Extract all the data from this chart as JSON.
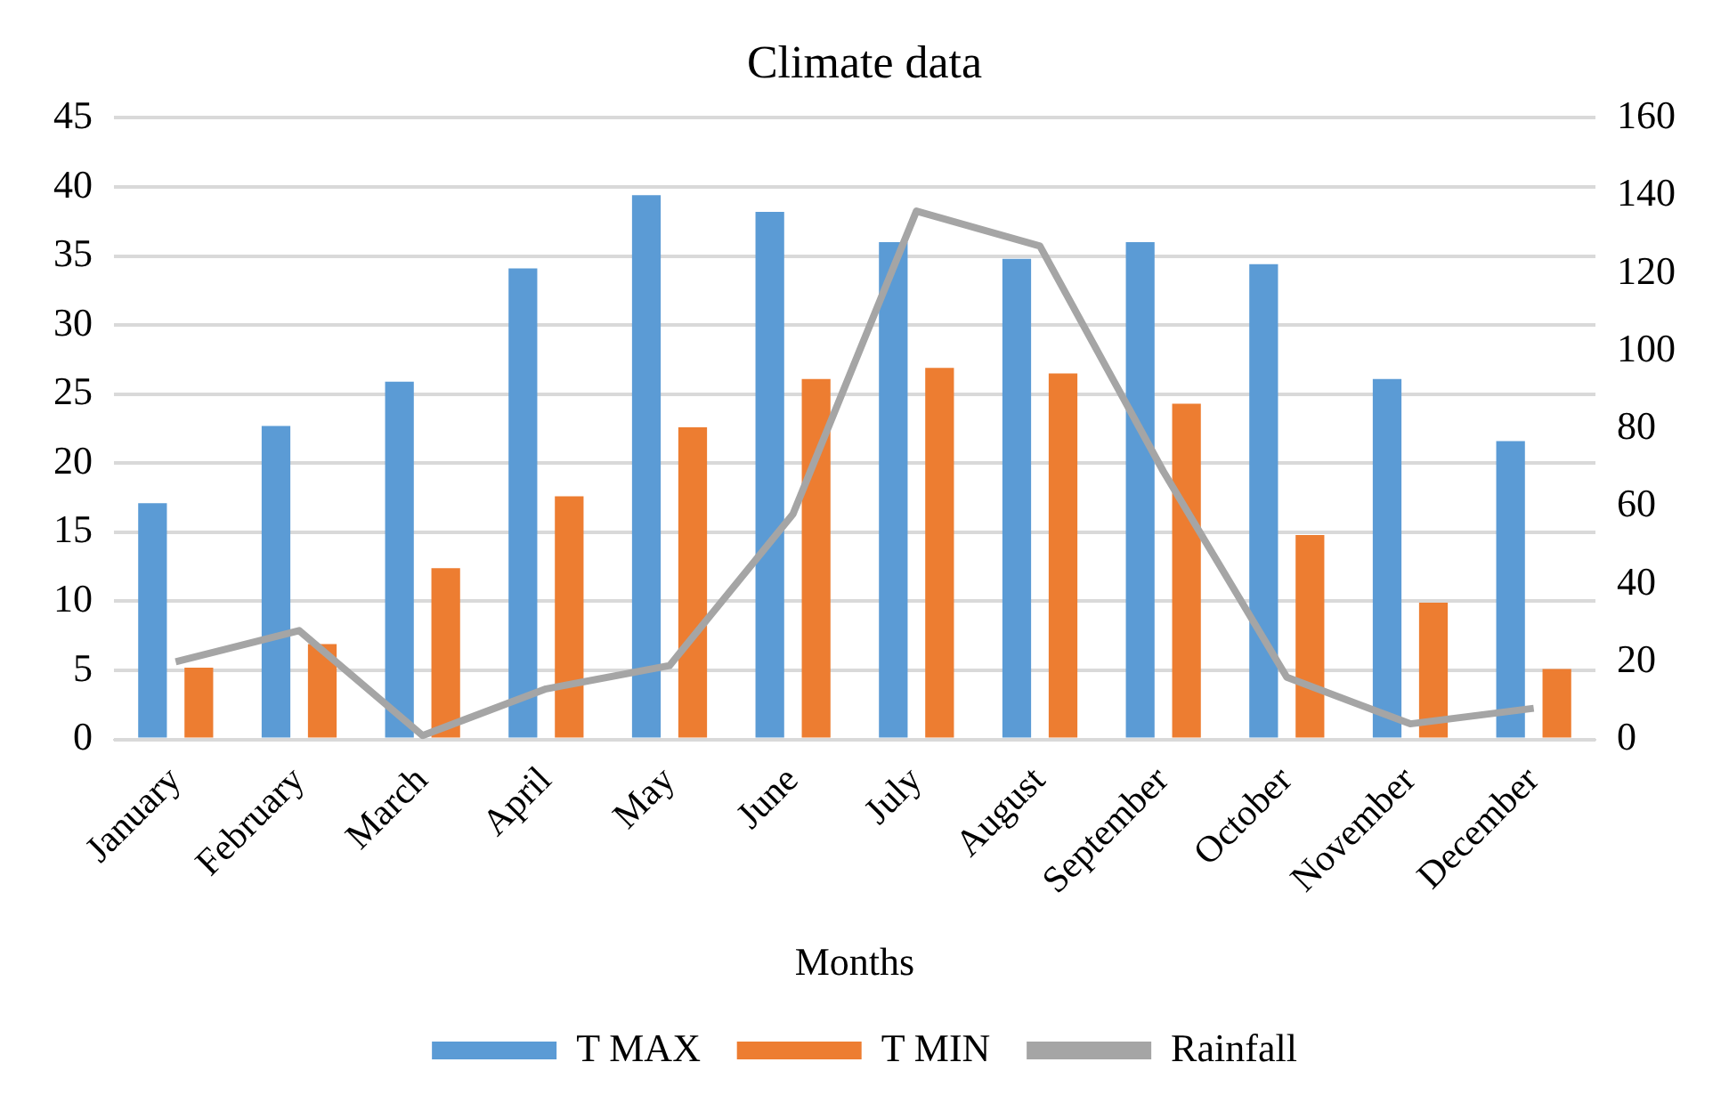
{
  "chart_data": {
    "type": "bar",
    "title": "Climate data",
    "xlabel": "Months",
    "categories": [
      "January",
      "February",
      "March",
      "April",
      "May",
      "June",
      "July",
      "August",
      "September",
      "October",
      "November",
      "December"
    ],
    "series": [
      {
        "name": "T MAX",
        "color": "#5b9bd5",
        "values": [
          17.1,
          22.7,
          25.9,
          34.1,
          39.4,
          38.2,
          36,
          34.8,
          36,
          34.4,
          26.1,
          21.6
        ]
      },
      {
        "name": "T MIN",
        "color": "#ed7d31",
        "values": [
          5.2,
          6.9,
          12.4,
          17.6,
          22.6,
          26.1,
          26.9,
          26.5,
          24.3,
          14.8,
          9.9,
          5.1
        ]
      },
      {
        "name": "Rainfall",
        "type": "line",
        "axis": "y2",
        "color": "#a5a5a5",
        "marker": "none",
        "values": [
          20,
          28,
          1,
          13,
          19,
          58,
          136,
          127,
          69,
          16,
          4,
          8
        ]
      }
    ],
    "ylim": [
      0,
      45
    ],
    "yticks": [
      0,
      5,
      10,
      15,
      20,
      25,
      30,
      35,
      40,
      45
    ],
    "y2lim": [
      0,
      160
    ],
    "y2ticks": [
      0,
      20,
      40,
      60,
      80,
      100,
      120,
      140,
      160
    ],
    "grid": "y",
    "legend": "bottom"
  }
}
